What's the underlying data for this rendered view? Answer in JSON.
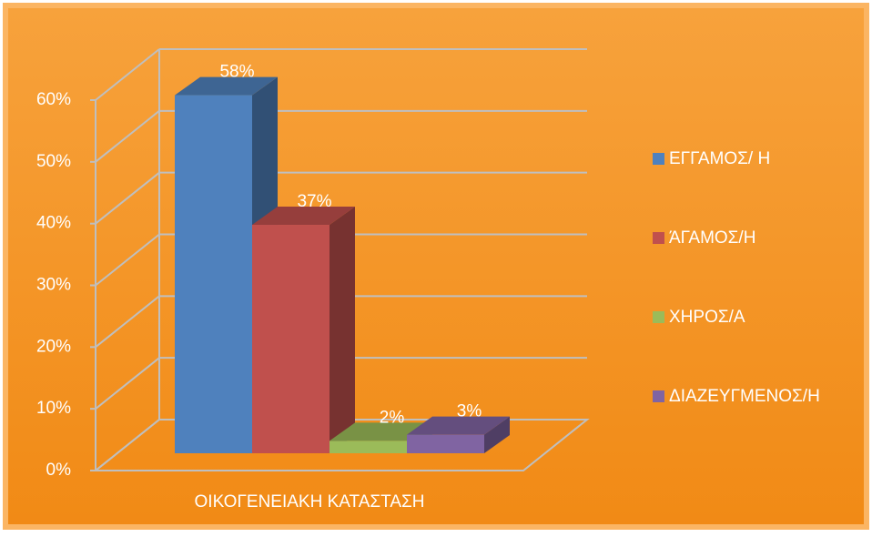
{
  "chart_data": {
    "type": "bar3d",
    "categories": [
      "ΟΙΚΟΓΕΝΕΙΑΚΗ ΚΑΤΑΣΤΑΣΗ"
    ],
    "series": [
      {
        "name": "ΕΓΓΑΜΟΣ/ Η",
        "color": "#4f81bd",
        "values": [
          58
        ],
        "value_labels": [
          "58%"
        ]
      },
      {
        "name": "ΆΓΑΜΟΣ/Η",
        "color": "#c0504d",
        "values": [
          37
        ],
        "value_labels": [
          "37%"
        ]
      },
      {
        "name": "ΧΗΡΟΣ/Α",
        "color": "#9bbb59",
        "values": [
          2
        ],
        "value_labels": [
          "2%"
        ]
      },
      {
        "name": "ΔΙΑΖΕΥΓΜΕΝΟΣ/Η",
        "color": "#8064a2",
        "values": [
          3
        ],
        "value_labels": [
          "3%"
        ]
      }
    ],
    "ylim": [
      0,
      60
    ],
    "yticks": [
      {
        "value": 0,
        "label": "0%"
      },
      {
        "value": 10,
        "label": "10%"
      },
      {
        "value": 20,
        "label": "20%"
      },
      {
        "value": 30,
        "label": "30%"
      },
      {
        "value": 40,
        "label": "40%"
      },
      {
        "value": 50,
        "label": "50%"
      },
      {
        "value": 60,
        "label": "60%"
      }
    ],
    "grid": true,
    "legend": "right"
  }
}
